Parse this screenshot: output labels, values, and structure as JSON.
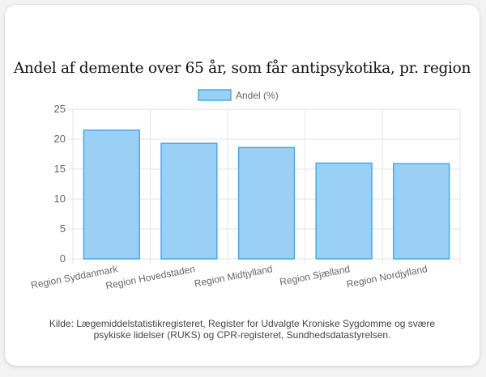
{
  "title": "Andel af demente over 65 år, som får antipsykotika, pr. region",
  "source_line1": "Kilde: Lægemiddelstatistikregisteret, Register for Udvalgte Kroniske Sygdomme og svære",
  "source_line2": "psykiske lidelser (RUKS) og CPR-registeret, Sundhedsdatastyrelsen.",
  "colors": {
    "bar_fill": "#9ad0f5",
    "bar_stroke": "#4aa8e8",
    "grid": "#e6e6e6",
    "tick_text": "#666666"
  },
  "chart_data": {
    "type": "bar",
    "categories": [
      "Region Syddanmark",
      "Region Hovedstaden",
      "Region Midtjylland",
      "Region Sjælland",
      "Region Nordjylland"
    ],
    "series": [
      {
        "name": "Andel (%)",
        "values": [
          21.5,
          19.3,
          18.6,
          16.0,
          15.9
        ]
      }
    ],
    "ylim": [
      0,
      25
    ],
    "yticks": [
      0,
      5,
      10,
      15,
      20,
      25
    ],
    "grid": true,
    "legend": "top-center"
  }
}
